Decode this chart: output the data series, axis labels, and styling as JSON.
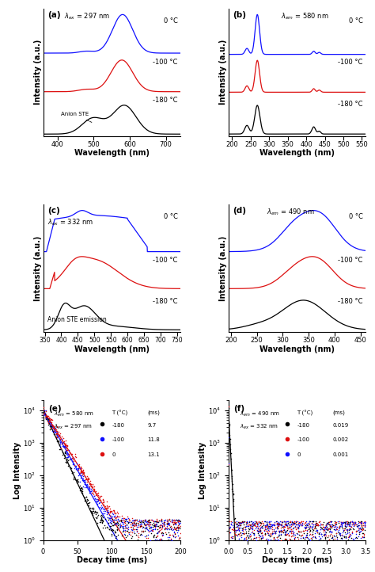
{
  "colors": {
    "blue": "#1010FF",
    "red": "#DD1010",
    "black": "#000000"
  },
  "panel_a": {
    "xlabel": "Wavelength (nm)",
    "ylabel": "Intensity (a.u.)",
    "lambda_label": "λex = 297 nm",
    "xrange": [
      360,
      740
    ],
    "xticks": [
      400,
      500,
      600,
      700
    ],
    "offsets": [
      2.1,
      1.1,
      0.0
    ],
    "annotation": "Anion STE"
  },
  "panel_b": {
    "xlabel": "Wavelength (nm)",
    "ylabel": "Intensity (a.u.)",
    "lambda_label": "λem = 580 nm",
    "xrange": [
      190,
      560
    ],
    "xticks": [
      200,
      250,
      300,
      350,
      400,
      450,
      500,
      550
    ],
    "offsets": [
      2.0,
      1.05,
      0.0
    ]
  },
  "panel_c": {
    "xlabel": "Wavelength (nm)",
    "ylabel": "Intensity (a.u.)",
    "lambda_label": "λex = 332 nm",
    "xrange": [
      345,
      760
    ],
    "xticks": [
      350,
      400,
      450,
      500,
      550,
      600,
      650,
      700,
      750
    ],
    "offsets": [
      1.9,
      1.0,
      0.0
    ],
    "annotation": "Anion STE emission"
  },
  "panel_d": {
    "xlabel": "Wavelength (nm)",
    "ylabel": "Intensity (a.u.)",
    "lambda_label": "λem = 490 nm",
    "xrange": [
      195,
      460
    ],
    "xticks": [
      200,
      250,
      300,
      350,
      400,
      450
    ],
    "offsets": [
      1.9,
      1.0,
      0.0
    ]
  },
  "panel_e": {
    "xlabel": "Decay time (ms)",
    "ylabel": "Log Intensity",
    "lambda_em": "λem = 580 nm",
    "lambda_ex": "λex = 297 nm",
    "xrange": [
      0,
      200
    ],
    "xticks": [
      0,
      50,
      100,
      150,
      200
    ],
    "taus": [
      9.7,
      11.8,
      13.1
    ],
    "temps": [
      "-180",
      "-100",
      "0"
    ],
    "tau_labels": [
      "9.7",
      "11.8",
      "13.1"
    ],
    "colors_order": [
      "black",
      "blue",
      "red"
    ]
  },
  "panel_f": {
    "xlabel": "Decay time (ms)",
    "ylabel": "Log Intensity",
    "lambda_em": "λem = 490 nm",
    "lambda_ex": "λex = 332 nm",
    "xrange": [
      0,
      3.5
    ],
    "xticks": [
      0.0,
      0.5,
      1.0,
      1.5,
      2.0,
      2.5,
      3.0,
      3.5
    ],
    "taus": [
      0.019,
      0.002,
      0.001
    ],
    "temps": [
      "-180",
      "-100",
      "0"
    ],
    "tau_labels": [
      "0.019",
      "0.002",
      "0.001"
    ],
    "colors_order": [
      "black",
      "red",
      "blue"
    ]
  }
}
